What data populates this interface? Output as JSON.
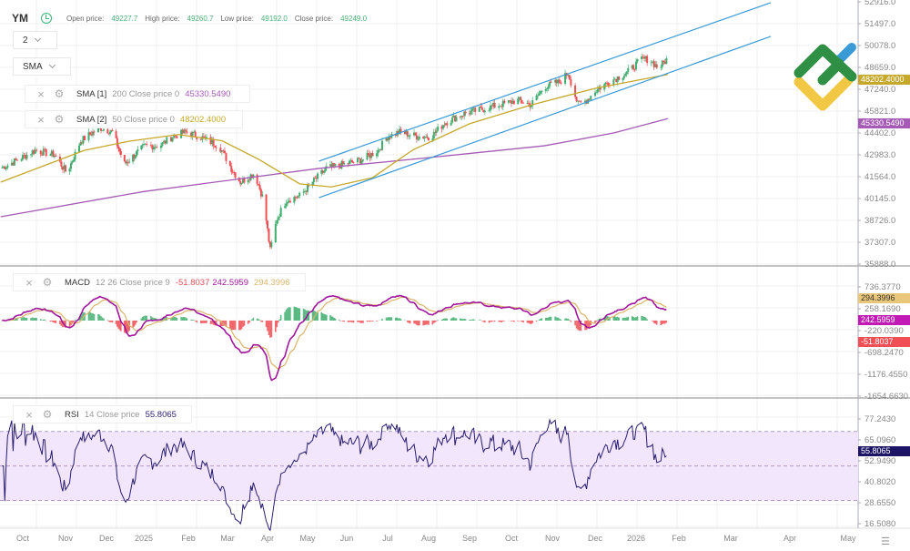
{
  "header": {
    "symbol": "YM",
    "open_label": "Open price:",
    "open": "49227.7",
    "high_label": "High price:",
    "high": "49260.7",
    "low_label": "Low price:",
    "low": "49192.0",
    "close_label": "Close price:",
    "close": "49249.0"
  },
  "controls": {
    "layout_select": "2",
    "indicator_select": "SMA"
  },
  "indicators": {
    "sma1": {
      "name": "SMA [1]",
      "params": "200 Close price 0",
      "value": "45330.5490"
    },
    "sma2": {
      "name": "SMA [2]",
      "params": "50 Close price 0",
      "value": "48202.4000"
    },
    "macd": {
      "name": "MACD",
      "params": "12 26 Close price 9",
      "histogram": "-51.8037",
      "macd": "242.5959",
      "signal": "294.3996"
    },
    "rsi": {
      "name": "RSI",
      "params": "14 Close price",
      "value": "55.8065"
    }
  },
  "colors": {
    "up": "#3fae6e",
    "down": "#ef4f55",
    "sma200": "#a55bb5",
    "sma50": "#c6a82a",
    "channel": "#3a9ad6",
    "macd": "#a0179c",
    "signal": "#d9b46a",
    "rsi": "#2a1e6e",
    "rsi_band": "#f1e6fb",
    "grid": "#f0f0f0"
  },
  "chart_data": [
    {
      "type": "candlestick",
      "pane": "price",
      "y_ticks": [
        "52916.0",
        "51497.0",
        "50078.0",
        "48659.0",
        "47240.0",
        "45821.0",
        "44402.0",
        "42983.0",
        "41564.0",
        "40145.0",
        "38726.0",
        "37307.0",
        "35888.0"
      ],
      "x_ticks": [
        "Oct",
        "Nov",
        "Dec",
        "2025",
        "Feb",
        "Mar",
        "Apr",
        "May",
        "Jun",
        "Jul",
        "Aug",
        "Sep",
        "Oct",
        "Nov",
        "Dec",
        "2026",
        "Feb",
        "Mar",
        "Apr",
        "May"
      ],
      "close": [
        [
          "2024-09-15",
          42100
        ],
        [
          "2024-09-28",
          42690
        ],
        [
          "2024-10-10",
          43280
        ],
        [
          "2024-10-24",
          42980
        ],
        [
          "2024-11-02",
          41800
        ],
        [
          "2024-11-12",
          43870
        ],
        [
          "2024-11-26",
          44760
        ],
        [
          "2024-12-06",
          44460
        ],
        [
          "2024-12-16",
          42390
        ],
        [
          "2025-01-02",
          43570
        ],
        [
          "2025-01-12",
          43570
        ],
        [
          "2025-01-21",
          44170
        ],
        [
          "2025-01-30",
          44460
        ],
        [
          "2025-02-09",
          44170
        ],
        [
          "2025-02-23",
          43570
        ],
        [
          "2025-03-04",
          42100
        ],
        [
          "2025-03-11",
          41210
        ],
        [
          "2025-03-22",
          41800
        ],
        [
          "2025-03-29",
          40030
        ],
        [
          "2025-04-03",
          36780
        ],
        [
          "2025-04-08",
          38840
        ],
        [
          "2025-04-15",
          40030
        ],
        [
          "2025-04-25",
          40320
        ],
        [
          "2025-05-05",
          41210
        ],
        [
          "2025-05-16",
          42100
        ],
        [
          "2025-05-31",
          42390
        ],
        [
          "2025-06-13",
          42690
        ],
        [
          "2025-06-24",
          43280
        ],
        [
          "2025-07-01",
          44170
        ],
        [
          "2025-07-10",
          44460
        ],
        [
          "2025-07-24",
          44170
        ],
        [
          "2025-08-03",
          44170
        ],
        [
          "2025-08-13",
          45050
        ],
        [
          "2025-08-27",
          45640
        ],
        [
          "2025-09-10",
          45940
        ],
        [
          "2025-09-23",
          46240
        ],
        [
          "2025-10-06",
          46530
        ],
        [
          "2025-10-16",
          46240
        ],
        [
          "2025-10-26",
          47420
        ],
        [
          "2025-11-06",
          47710
        ],
        [
          "2025-11-12",
          48300
        ],
        [
          "2025-11-19",
          46240
        ],
        [
          "2025-11-25",
          46530
        ],
        [
          "2025-12-01",
          47120
        ],
        [
          "2025-12-11",
          47710
        ],
        [
          "2025-12-25",
          48300
        ],
        [
          "2026-01-05",
          49190
        ],
        [
          "2026-01-11",
          49190
        ],
        [
          "2026-01-17",
          48600
        ],
        [
          "2026-01-24",
          49249
        ]
      ],
      "sma200": [
        [
          "2024-09-15",
          38960
        ],
        [
          "2025-01-01",
          40600
        ],
        [
          "2025-05-10",
          42100
        ],
        [
          "2025-08-01",
          42800
        ],
        [
          "2025-10-26",
          43570
        ],
        [
          "2025-12-15",
          44400
        ],
        [
          "2026-01-24",
          45330.549
        ]
      ],
      "sma50": [
        [
          "2024-09-15",
          41210
        ],
        [
          "2024-11-15",
          43280
        ],
        [
          "2024-12-20",
          43870
        ],
        [
          "2025-01-25",
          44300
        ],
        [
          "2025-02-25",
          43900
        ],
        [
          "2025-03-25",
          42700
        ],
        [
          "2025-04-25",
          41100
        ],
        [
          "2025-05-20",
          40900
        ],
        [
          "2025-06-20",
          41500
        ],
        [
          "2025-07-20",
          43300
        ],
        [
          "2025-09-01",
          45000
        ],
        [
          "2025-10-15",
          46200
        ],
        [
          "2025-12-01",
          47300
        ],
        [
          "2026-01-24",
          48202.4
        ]
      ],
      "channel_upper": [
        [
          "2025-05-10",
          42570
        ],
        [
          "2026-03-22",
          52860
        ]
      ],
      "channel_lower": [
        [
          "2025-05-10",
          40200
        ],
        [
          "2026-03-22",
          50670
        ]
      ]
    },
    {
      "type": "macd",
      "pane": "macd",
      "y_ticks": [
        "736.3770",
        "258.1690",
        "-220.0390",
        "-698.2470",
        "-1176.4550",
        "-1654.6630"
      ]
    },
    {
      "type": "line",
      "pane": "rsi",
      "y_ticks": [
        "77.2430",
        "65.0960",
        "52.9490",
        "40.8020",
        "28.6550",
        "16.5080"
      ],
      "bands": [
        30,
        50,
        70
      ]
    }
  ]
}
